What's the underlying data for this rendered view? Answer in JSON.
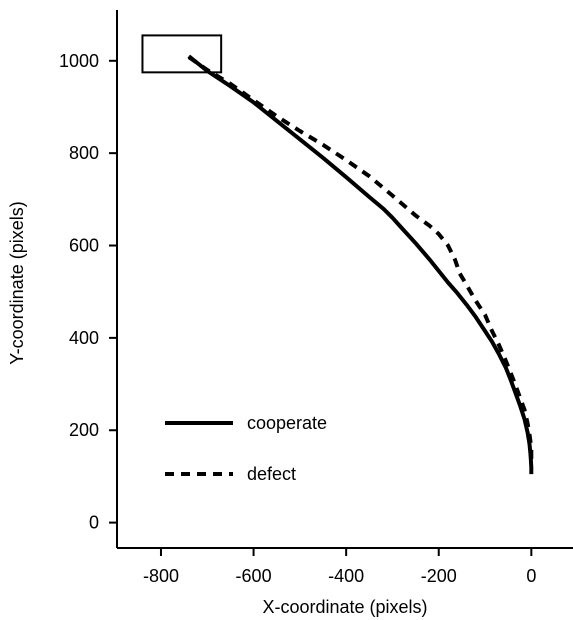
{
  "chart_data": {
    "type": "line",
    "title": "",
    "xlabel": "X-coordinate (pixels)",
    "ylabel": "Y-coordinate (pixels)",
    "xlim": [
      -895,
      90
    ],
    "ylim": [
      -55,
      1110
    ],
    "x_ticks": [
      -800,
      -600,
      -400,
      -200,
      0
    ],
    "y_ticks": [
      0,
      200,
      400,
      600,
      800,
      1000
    ],
    "x_tick_labels": [
      "-800",
      "-600",
      "-400",
      "-200",
      "0"
    ],
    "y_tick_labels": [
      "0",
      "200",
      "400",
      "600",
      "800",
      "1000"
    ],
    "legend_position": "lower-left",
    "grid": false,
    "series": [
      {
        "name": "cooperate",
        "line_style": "solid",
        "color": "#000000",
        "x": [
          -740,
          -700,
          -650,
          -600,
          -550,
          -500,
          -450,
          -400,
          -350,
          -320,
          -300,
          -280,
          -250,
          -220,
          -200,
          -180,
          -160,
          -140,
          -120,
          -100,
          -85,
          -70,
          -55,
          -45,
          -35,
          -25,
          -15,
          -8,
          -4,
          -2,
          -1,
          0,
          0,
          0
        ],
        "y": [
          1010,
          978,
          945,
          910,
          870,
          830,
          790,
          748,
          705,
          680,
          660,
          638,
          605,
          570,
          545,
          520,
          497,
          472,
          445,
          415,
          392,
          365,
          335,
          310,
          283,
          255,
          225,
          195,
          170,
          150,
          135,
          120,
          110,
          105
        ]
      },
      {
        "name": "defect",
        "line_style": "dashed",
        "color": "#000000",
        "x": [
          -740,
          -700,
          -650,
          -600,
          -550,
          -500,
          -450,
          -400,
          -350,
          -300,
          -250,
          -220,
          -200,
          -180,
          -165,
          -160,
          -155,
          -140,
          -120,
          -100,
          -85,
          -70,
          -55,
          -45,
          -35,
          -25,
          -15,
          -8,
          -3,
          0,
          0
        ],
        "y": [
          1008,
          980,
          950,
          915,
          880,
          848,
          818,
          785,
          750,
          708,
          665,
          643,
          625,
          600,
          570,
          555,
          540,
          515,
          480,
          450,
          415,
          385,
          350,
          325,
          300,
          272,
          245,
          215,
          185,
          160,
          130
        ]
      }
    ],
    "annotation_box": {
      "x": [
        -840,
        -670
      ],
      "y": [
        975,
        1055
      ]
    }
  }
}
